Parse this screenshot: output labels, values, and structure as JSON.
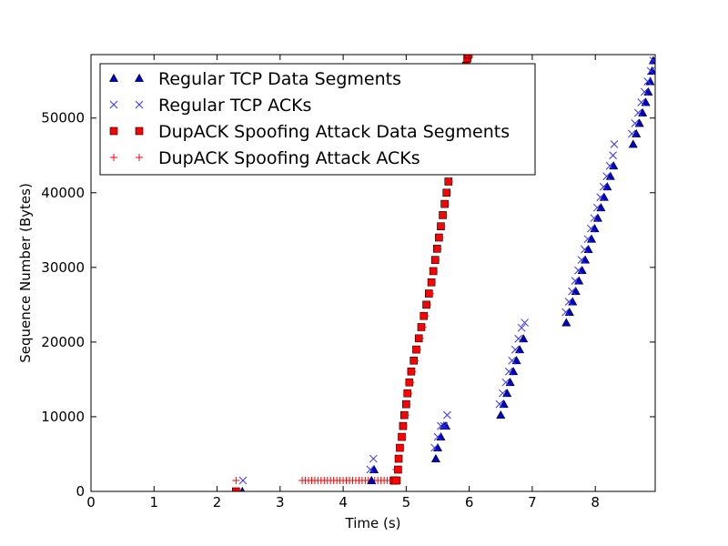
{
  "chart_data": {
    "type": "scatter",
    "xlabel": "Time (s)",
    "ylabel": "Sequence Number (Bytes)",
    "xlim": [
      0,
      8.95
    ],
    "ylim": [
      0,
      58500
    ],
    "xticks": [
      0,
      1,
      2,
      3,
      4,
      5,
      6,
      7,
      8
    ],
    "yticks": [
      0,
      10000,
      20000,
      30000,
      40000,
      50000
    ],
    "grid": false,
    "legend_position": "top-left",
    "series": [
      {
        "name": "Regular TCP Data Segments",
        "marker": "triangle",
        "color": "#0000cc",
        "x": [
          2.4,
          4.45,
          4.49,
          5.47,
          5.5,
          5.55,
          5.6,
          5.63,
          6.5,
          6.55,
          6.6,
          6.65,
          6.7,
          6.75,
          6.8,
          6.86,
          7.54,
          7.59,
          7.64,
          7.69,
          7.74,
          7.79,
          7.84,
          7.89,
          7.94,
          7.99,
          8.04,
          8.09,
          8.14,
          8.19,
          8.24,
          8.29,
          8.6,
          8.65,
          8.7,
          8.75,
          8.8,
          8.84,
          8.87,
          8.9,
          8.92
        ],
        "y": [
          0,
          1460,
          2920,
          4380,
          5840,
          7300,
          8760,
          8760,
          10220,
          11680,
          13140,
          14600,
          16060,
          17520,
          18980,
          20440,
          22600,
          24000,
          25400,
          26800,
          28200,
          29600,
          31000,
          32400,
          33800,
          35200,
          36600,
          38000,
          39400,
          40800,
          42200,
          43600,
          46500,
          47900,
          49300,
          50700,
          52100,
          53500,
          54900,
          56300,
          57700
        ]
      },
      {
        "name": "Regular TCP ACKs",
        "marker": "x",
        "color": "#3333ff",
        "x": [
          2.41,
          4.43,
          4.48,
          5.45,
          5.5,
          5.55,
          5.6,
          5.65,
          6.48,
          6.53,
          6.58,
          6.63,
          6.68,
          6.73,
          6.78,
          6.83,
          6.88,
          7.53,
          7.58,
          7.63,
          7.68,
          7.73,
          7.78,
          7.83,
          7.88,
          7.93,
          7.98,
          8.03,
          8.08,
          8.13,
          8.18,
          8.23,
          8.28,
          8.3,
          8.58,
          8.63,
          8.68,
          8.73,
          8.78,
          8.83,
          8.88,
          8.92
        ],
        "y": [
          1460,
          2920,
          4380,
          5840,
          7300,
          8760,
          8760,
          10220,
          11680,
          13140,
          14600,
          16060,
          17520,
          18980,
          20440,
          21900,
          22600,
          24000,
          25400,
          26800,
          28200,
          29600,
          31000,
          32400,
          33800,
          35200,
          36600,
          38000,
          39400,
          40800,
          42200,
          43600,
          45000,
          46500,
          47900,
          49300,
          50700,
          52100,
          53500,
          54900,
          56300,
          57700
        ]
      },
      {
        "name": "DupACK Spoofing Attack Data Segments",
        "marker": "square",
        "color": "#ff0000",
        "x": [
          2.3,
          4.8,
          4.82,
          4.85,
          4.87,
          4.88,
          4.9,
          4.93,
          4.95,
          4.97,
          5.0,
          5.02,
          5.05,
          5.08,
          5.12,
          5.16,
          5.2,
          5.24,
          5.28,
          5.32,
          5.36,
          5.4,
          5.43,
          5.46,
          5.49,
          5.52,
          5.55,
          5.58,
          5.61,
          5.64,
          5.67,
          5.7,
          5.72,
          5.95,
          5.97,
          5.99
        ],
        "y": [
          0,
          1460,
          1460,
          1460,
          2920,
          4380,
          5840,
          7300,
          8760,
          10220,
          11680,
          13140,
          14600,
          16060,
          17520,
          19000,
          20500,
          22000,
          23500,
          25000,
          26500,
          28000,
          29500,
          31000,
          32500,
          34000,
          35500,
          37000,
          38500,
          40000,
          41500,
          43000,
          44500,
          57000,
          58000,
          58500
        ]
      },
      {
        "name": "DupACK Spoofing Attack ACKs",
        "marker": "plus",
        "color": "#ff0000",
        "x": [
          2.3,
          3.35,
          3.4,
          3.45,
          3.5,
          3.55,
          3.6,
          3.65,
          3.7,
          3.75,
          3.8,
          3.85,
          3.9,
          3.95,
          4.0,
          4.05,
          4.1,
          4.15,
          4.2,
          4.25,
          4.3,
          4.35,
          4.4,
          4.45,
          4.5,
          4.55,
          4.6,
          4.65,
          4.7,
          4.75,
          4.8,
          4.84,
          4.88,
          4.91,
          4.94,
          4.96,
          4.99,
          5.01,
          5.04,
          5.07,
          5.1,
          5.14,
          5.18,
          5.22,
          5.26,
          5.3,
          5.34,
          5.38,
          5.41,
          5.44,
          5.47,
          5.5,
          5.53,
          5.56,
          5.59,
          5.62,
          5.65,
          5.68
        ],
        "y": [
          1460,
          1460,
          1460,
          1460,
          1460,
          1460,
          1460,
          1460,
          1460,
          1460,
          1460,
          1460,
          1460,
          1460,
          1460,
          1460,
          1460,
          1460,
          1460,
          1460,
          1460,
          1460,
          1460,
          1460,
          1460,
          1460,
          1460,
          1460,
          1460,
          1460,
          1460,
          2920,
          4380,
          5840,
          7300,
          8760,
          10220,
          11680,
          13140,
          14600,
          16060,
          17520,
          19000,
          20500,
          22000,
          23500,
          25000,
          26500,
          28000,
          29500,
          31000,
          32500,
          34000,
          35500,
          37000,
          38500,
          40000,
          41500
        ]
      }
    ]
  }
}
